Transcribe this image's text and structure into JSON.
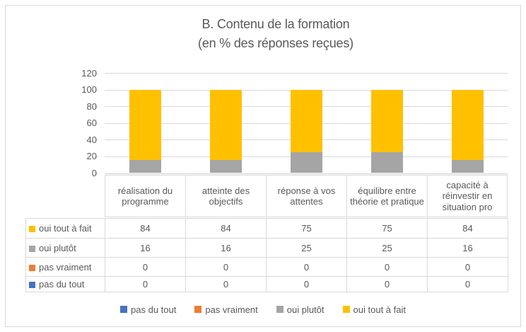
{
  "title": {
    "line1": "B. Contenu de la formation",
    "line2": "(en % des réponses reçues)"
  },
  "chart_data": {
    "type": "bar",
    "stacked": true,
    "title": "B. Contenu de la formation (en % des réponses reçues)",
    "categories": [
      "réalisation du programme",
      "atteinte des objectifs",
      "réponse à vos attentes",
      "équilibre entre théorie et pratique",
      "capacité à réinvestir en situation pro"
    ],
    "series": [
      {
        "name": "pas du tout",
        "color": "#4472C4",
        "values": [
          0,
          0,
          0,
          0,
          0
        ]
      },
      {
        "name": "pas vraiment",
        "color": "#ED7D31",
        "values": [
          0,
          0,
          0,
          0,
          0
        ]
      },
      {
        "name": "oui plutôt",
        "color": "#A5A5A5",
        "values": [
          16,
          16,
          25,
          25,
          16
        ]
      },
      {
        "name": "oui tout à fait",
        "color": "#FFC000",
        "values": [
          84,
          84,
          75,
          75,
          84
        ]
      }
    ],
    "ylim": [
      0,
      120
    ],
    "yticks": [
      0,
      20,
      40,
      60,
      80,
      100,
      120
    ],
    "grid": true,
    "legend_position": "bottom",
    "data_table": true,
    "table_row_order": [
      "oui tout à fait",
      "oui plutôt",
      "pas vraiment",
      "pas du tout"
    ]
  },
  "colors": {
    "text": "#595959",
    "grid": "#D9D9D9",
    "border": "#D9D9D9"
  }
}
